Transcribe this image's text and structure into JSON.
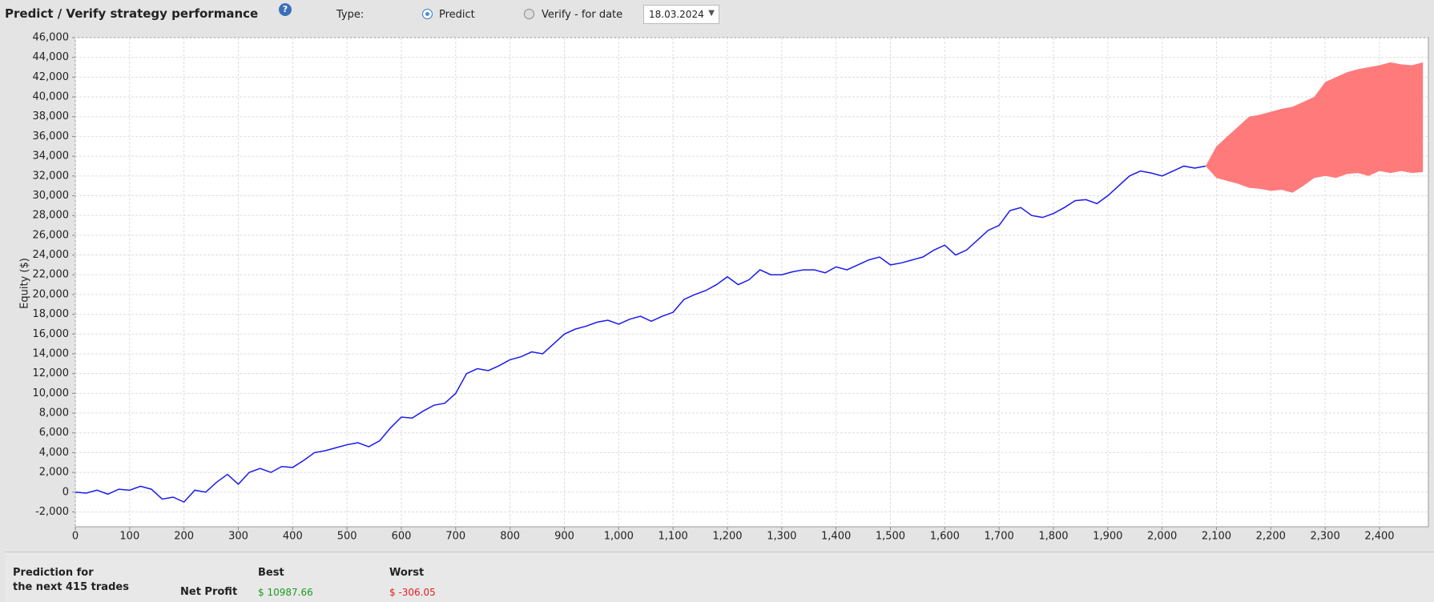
{
  "header": {
    "title": "Predict / Verify strategy performance",
    "type_label": "Type:",
    "option_predict": "Predict",
    "option_verify": "Verify - for date",
    "date": "18.03.2024"
  },
  "chart_data": {
    "type": "line",
    "ylabel": "Equity ($)",
    "xlim": [
      0,
      2490
    ],
    "ylim": [
      -3500,
      46000
    ],
    "grid": true,
    "xticks": [
      0,
      100,
      200,
      300,
      400,
      500,
      600,
      700,
      800,
      900,
      {
        "value": 1000,
        "label": "1,000"
      },
      {
        "value": 1100,
        "label": "1,100"
      },
      {
        "value": 1200,
        "label": "1,200"
      },
      {
        "value": 1300,
        "label": "1,300"
      },
      {
        "value": 1400,
        "label": "1,400"
      },
      {
        "value": 1500,
        "label": "1,500"
      },
      {
        "value": 1600,
        "label": "1,600"
      },
      {
        "value": 1700,
        "label": "1,700"
      },
      {
        "value": 1800,
        "label": "1,800"
      },
      {
        "value": 1900,
        "label": "1,900"
      },
      {
        "value": 2000,
        "label": "2,000"
      },
      {
        "value": 2100,
        "label": "2,100"
      },
      {
        "value": 2200,
        "label": "2,200"
      },
      {
        "value": 2300,
        "label": "2,300"
      },
      {
        "value": 2400,
        "label": "2,400"
      }
    ],
    "yticks": [
      {
        "value": -2000,
        "label": "-2,000"
      },
      0,
      {
        "value": 2000,
        "label": "2,000"
      },
      {
        "value": 4000,
        "label": "4,000"
      },
      {
        "value": 6000,
        "label": "6,000"
      },
      {
        "value": 8000,
        "label": "8,000"
      },
      {
        "value": 10000,
        "label": "10,000"
      },
      {
        "value": 12000,
        "label": "12,000"
      },
      {
        "value": 14000,
        "label": "14,000"
      },
      {
        "value": 16000,
        "label": "16,000"
      },
      {
        "value": 18000,
        "label": "18,000"
      },
      {
        "value": 20000,
        "label": "20,000"
      },
      {
        "value": 22000,
        "label": "22,000"
      },
      {
        "value": 24000,
        "label": "24,000"
      },
      {
        "value": 26000,
        "label": "26,000"
      },
      {
        "value": 28000,
        "label": "28,000"
      },
      {
        "value": 30000,
        "label": "30,000"
      },
      {
        "value": 32000,
        "label": "32,000"
      },
      {
        "value": 34000,
        "label": "34,000"
      },
      {
        "value": 36000,
        "label": "36,000"
      },
      {
        "value": 38000,
        "label": "38,000"
      },
      {
        "value": 40000,
        "label": "40,000"
      },
      {
        "value": 42000,
        "label": "42,000"
      },
      {
        "value": 44000,
        "label": "44,000"
      },
      {
        "value": 46000,
        "label": "46,000"
      }
    ],
    "series": [
      {
        "color": "#1a1aee",
        "x": [
          0,
          20,
          40,
          60,
          80,
          100,
          120,
          140,
          160,
          180,
          200,
          220,
          240,
          260,
          280,
          300,
          320,
          340,
          360,
          380,
          400,
          420,
          440,
          460,
          480,
          500,
          520,
          540,
          560,
          580,
          600,
          620,
          640,
          660,
          680,
          700,
          720,
          740,
          760,
          780,
          800,
          820,
          840,
          860,
          880,
          900,
          920,
          940,
          960,
          980,
          1000,
          1020,
          1040,
          1060,
          1080,
          1100,
          1120,
          1140,
          1160,
          1180,
          1200,
          1220,
          1240,
          1260,
          1280,
          1300,
          1320,
          1340,
          1360,
          1380,
          1400,
          1420,
          1440,
          1460,
          1480,
          1500,
          1520,
          1540,
          1560,
          1580,
          1600,
          1620,
          1640,
          1660,
          1680,
          1700,
          1720,
          1740,
          1760,
          1780,
          1800,
          1820,
          1840,
          1860,
          1880,
          1900,
          1920,
          1940,
          1960,
          1980,
          2000,
          2020,
          2040,
          2060,
          2080
        ],
        "values": [
          0,
          -100,
          200,
          -200,
          300,
          200,
          600,
          300,
          -700,
          -500,
          -1000,
          200,
          0,
          1000,
          1800,
          800,
          2000,
          2400,
          2000,
          2600,
          2500,
          3200,
          4000,
          4200,
          4500,
          4800,
          5000,
          4600,
          5200,
          6500,
          7600,
          7500,
          8200,
          8800,
          9000,
          10000,
          12000,
          12500,
          12300,
          12800,
          13400,
          13700,
          14200,
          14000,
          15000,
          16000,
          16500,
          16800,
          17200,
          17400,
          17000,
          17500,
          17800,
          17300,
          17800,
          18200,
          19500,
          20000,
          20400,
          21000,
          21800,
          21000,
          21500,
          22500,
          22000,
          22000,
          22300,
          22500,
          22500,
          22200,
          22800,
          22500,
          23000,
          23500,
          23800,
          23000,
          23200,
          23500,
          23800,
          24500,
          25000,
          24000,
          24500,
          25500,
          26500,
          27000,
          28500,
          28800,
          28000,
          27800,
          28200,
          28800,
          29500,
          29600,
          29200,
          30000,
          31000,
          32000,
          32500,
          32300,
          32000,
          32500,
          33000,
          32800,
          33000
        ]
      }
    ],
    "band": {
      "color": "#ff7b7b",
      "x": [
        2080,
        2100,
        2120,
        2140,
        2160,
        2180,
        2200,
        2220,
        2240,
        2260,
        2280,
        2300,
        2320,
        2340,
        2360,
        2380,
        2400,
        2420,
        2440,
        2460,
        2480
      ],
      "upper": [
        33000,
        35000,
        36000,
        37000,
        38000,
        38200,
        38500,
        38800,
        39000,
        39500,
        40000,
        41500,
        42000,
        42500,
        42800,
        43000,
        43200,
        43500,
        43300,
        43200,
        43500
      ],
      "lower": [
        33000,
        31800,
        31500,
        31200,
        30800,
        30700,
        30500,
        30600,
        30300,
        31000,
        31800,
        32000,
        31800,
        32200,
        32300,
        32000,
        32500,
        32300,
        32500,
        32300,
        32400
      ]
    }
  },
  "summary": {
    "heading_line1": "Prediction for",
    "heading_line2": "the next 415 trades",
    "col_best": "Best",
    "col_worst": "Worst",
    "row_label": "Net Profit",
    "best": "$ 10987.66",
    "worst": "$ -306.05"
  }
}
